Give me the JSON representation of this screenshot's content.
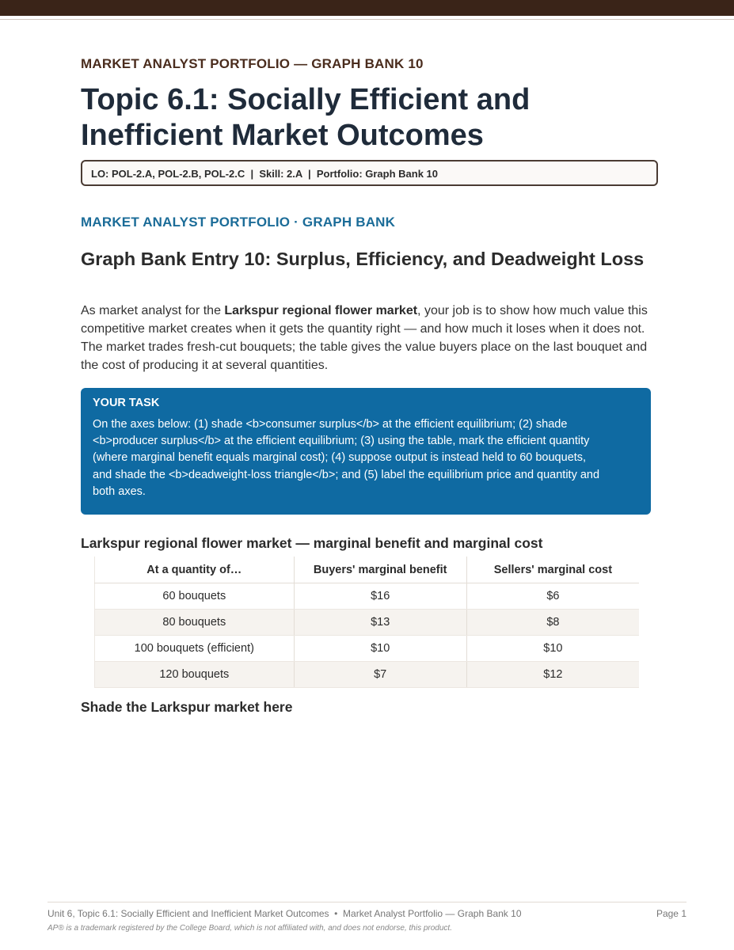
{
  "header": {
    "eyebrow": "MARKET ANALYST PORTFOLIO — GRAPH BANK 10",
    "title": "Topic 6.1: Socially Efficient and Inefficient Market Outcomes",
    "lo_line": "LO: POL-2.A, POL-2.B, POL-2.C  |  Skill: 2.A  |  Portfolio: Graph Bank 10"
  },
  "section": {
    "label": "MARKET ANALYST PORTFOLIO · GRAPH BANK",
    "entry_title": "Graph Bank Entry 10: Surplus, Efficiency, and Deadweight Loss",
    "intro_before": "As market analyst for the ",
    "intro_bold": "Larkspur regional flower market",
    "intro_after": ", your job is to show how much value this competitive market creates when it gets the quantity right — and how much it loses when it does not. The market trades fresh-cut bouquets; the table gives the value buyers place on the last bouquet and the cost of producing it at several quantities."
  },
  "task": {
    "label": "YOUR TASK",
    "text": "On the axes below: (1) shade <b>consumer surplus</b> at the efficient equilibrium; (2) shade <b>producer surplus</b> at the efficient equilibrium; (3) using the table, mark the efficient quantity (where marginal benefit equals marginal cost); (4) suppose output is instead held to 60 bouquets, and shade the <b>deadweight-loss triangle</b>; and (5) label the equilibrium price and quantity and both axes."
  },
  "table": {
    "title": "Larkspur regional flower market — marginal benefit and marginal cost",
    "headers": [
      "At a quantity of…",
      "Buyers' marginal benefit",
      "Sellers' marginal cost"
    ],
    "rows": [
      [
        "60 bouquets",
        "$16",
        "$6"
      ],
      [
        "80 bouquets",
        "$13",
        "$8"
      ],
      [
        "100 bouquets (efficient)",
        "$10",
        "$10"
      ],
      [
        "120 bouquets",
        "$7",
        "$12"
      ]
    ]
  },
  "graph_area": {
    "label": "Shade the Larkspur market here"
  },
  "footer": {
    "left": "Unit 6, Topic 6.1: Socially Efficient and Inefficient Market Outcomes  •  Market Analyst Portfolio — Graph Bank 10",
    "page": "Page 1",
    "note": "AP® is a trademark registered by the College Board, which is not affiliated with, and does not endorse, this product."
  }
}
